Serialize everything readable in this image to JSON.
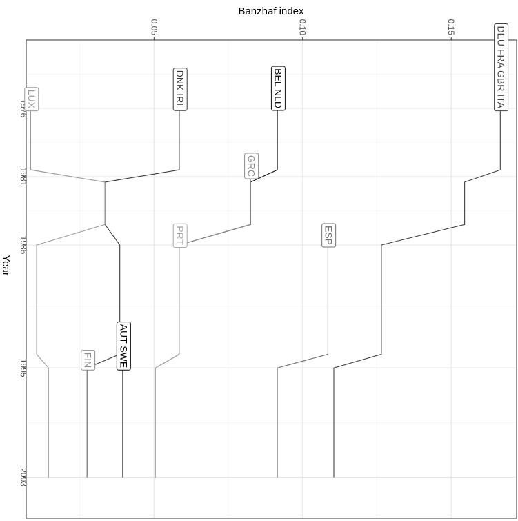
{
  "chart_data": {
    "type": "line",
    "xlabel": "Banzhaf index",
    "ylabel": "Year",
    "xlim": [
      0.007,
      0.172
    ],
    "ylim": [
      1971,
      2006
    ],
    "x_ticks": [
      {
        "value": 0.05,
        "label": "0.05"
      },
      {
        "value": 0.1,
        "label": "0.10"
      },
      {
        "value": 0.15,
        "label": "0.15"
      }
    ],
    "y_ticks": [
      {
        "value": 1976,
        "label": "1976"
      },
      {
        "value": 1981,
        "label": "1981"
      },
      {
        "value": 1986,
        "label": "1986"
      },
      {
        "value": 1995,
        "label": "1995"
      },
      {
        "value": 2003,
        "label": "2003"
      }
    ],
    "grid": true,
    "legend": "none",
    "series": [
      {
        "label": "DEU FRA GBR ITA",
        "label_year": 1976,
        "color": "#404040",
        "points": [
          [
            0.1665,
            1976
          ],
          [
            0.1665,
            1980.5
          ],
          [
            0.1545,
            1981.4
          ],
          [
            0.1545,
            1984.5
          ],
          [
            0.1265,
            1986
          ],
          [
            0.1265,
            1994
          ],
          [
            0.1105,
            1995
          ],
          [
            0.1105,
            2003
          ]
        ]
      },
      {
        "label": "ESP",
        "label_year": 1986,
        "color": "#707070",
        "points": [
          [
            0.1085,
            1986
          ],
          [
            0.1085,
            1994
          ],
          [
            0.0915,
            1995
          ],
          [
            0.0915,
            2003
          ]
        ]
      },
      {
        "label": "BEL NLD",
        "label_year": 1976,
        "color": "#111111",
        "points": [
          [
            0.0915,
            1976
          ],
          [
            0.0915,
            1980.5
          ],
          [
            0.0825,
            1981.4
          ],
          [
            0.0825,
            1984.5
          ],
          [
            0.0585,
            1986
          ],
          [
            0.0585,
            1994
          ],
          [
            0.0505,
            1995
          ],
          [
            0.0505,
            2003
          ]
        ]
      },
      {
        "label": "GRC",
        "label_year": 1981,
        "color": "#8a8a8a",
        "points": [
          [
            0.0825,
            1981
          ],
          [
            0.0825,
            1984.5
          ],
          [
            0.0585,
            1986
          ],
          [
            0.0585,
            1994
          ],
          [
            0.0505,
            1995
          ],
          [
            0.0505,
            2003
          ]
        ]
      },
      {
        "label": "PRT",
        "label_year": 1986,
        "color": "#aaaaaa",
        "points": [
          [
            0.0585,
            1986
          ],
          [
            0.0585,
            1994
          ],
          [
            0.0505,
            1995
          ],
          [
            0.0505,
            2003
          ]
        ]
      },
      {
        "label": "DNK IRL",
        "label_year": 1976,
        "color": "#3a3a3a",
        "points": [
          [
            0.0585,
            1976
          ],
          [
            0.0585,
            1980.5
          ],
          [
            0.0335,
            1981.4
          ],
          [
            0.0335,
            1984.5
          ],
          [
            0.0385,
            1986
          ],
          [
            0.0385,
            1994
          ],
          [
            0.0275,
            1995
          ],
          [
            0.0275,
            2003
          ]
        ]
      },
      {
        "label": "LUX",
        "label_year": 1976,
        "color": "#9a9a9a",
        "points": [
          [
            0.0085,
            1976
          ],
          [
            0.0085,
            1980.5
          ],
          [
            0.0335,
            1981.4
          ],
          [
            0.0335,
            1984.5
          ],
          [
            0.0105,
            1986
          ],
          [
            0.0105,
            1994
          ],
          [
            0.0145,
            1995
          ],
          [
            0.0145,
            2003
          ]
        ]
      },
      {
        "label": "AUT SWE",
        "label_year": 1995,
        "color": "#000000",
        "points": [
          [
            0.0395,
            1995
          ],
          [
            0.0395,
            2003
          ]
        ]
      },
      {
        "label": "FIN",
        "label_year": 1995,
        "color": "#8c8c8c",
        "points": [
          [
            0.0275,
            1995
          ],
          [
            0.0275,
            2003
          ]
        ]
      }
    ]
  }
}
